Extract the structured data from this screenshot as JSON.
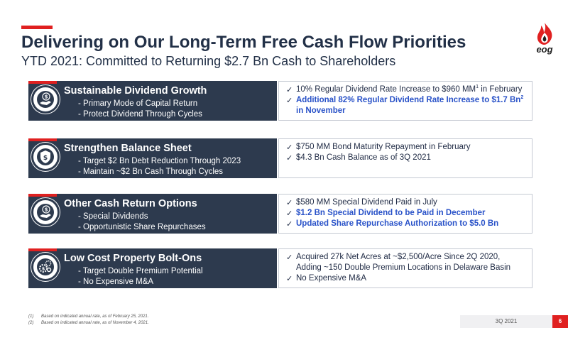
{
  "header": {
    "title": "Delivering on Our Long-Term Free Cash Flow Priorities",
    "subtitle": "YTD 2021: Committed to Returning $2.7 Bn Cash to Shareholders",
    "logo_text": "eog"
  },
  "rows": [
    {
      "icon": "money-hand-icon",
      "heading": "Sustainable Dividend Growth",
      "bullets": [
        "Primary Mode of Capital Return",
        "Protect Dividend Through Cycles"
      ],
      "checks": [
        {
          "text": "10% Regular Dividend Rate Increase to $960 MM",
          "sup": "1",
          "after": " in February",
          "highlight": false
        },
        {
          "text": "Additional 82% Regular Dividend Rate Increase to $1.7 Bn",
          "sup": "2",
          "after": " in November",
          "highlight": true
        }
      ]
    },
    {
      "icon": "shield-dollar-icon",
      "heading": "Strengthen Balance Sheet",
      "bullets": [
        "Target $2 Bn Debt Reduction Through 2023",
        "Maintain ~$2 Bn Cash Through Cycles"
      ],
      "checks": [
        {
          "text": "$750 MM Bond Maturity Repayment in February",
          "highlight": false
        },
        {
          "text": "$4.3 Bn Cash Balance as of 3Q 2021",
          "highlight": false
        }
      ]
    },
    {
      "icon": "money-hand-icon",
      "heading": "Other Cash Return Options",
      "bullets": [
        "Special Dividends",
        "Opportunistic Share Repurchases"
      ],
      "checks": [
        {
          "text": "$580 MM Special Dividend Paid in July",
          "highlight": false
        },
        {
          "text": "$1.2 Bn Special Dividend to be Paid in December",
          "highlight": true
        },
        {
          "text": "Updated Share Repurchase Authorization to $5.0 Bn",
          "highlight": true
        }
      ]
    },
    {
      "icon": "gears-dollar-icon",
      "heading": "Low Cost Property Bolt-Ons",
      "bullets": [
        "Target Double Premium Potential",
        "No Expensive M&A"
      ],
      "checks": [
        {
          "text": "Acquired 27k Net Acres at ~$2,500/Acre Since 2Q 2020, Adding ~150 Double Premium Locations in Delaware Basin",
          "highlight": false
        },
        {
          "text": "No Expensive M&A",
          "highlight": false
        }
      ]
    }
  ],
  "footnotes": [
    {
      "num": "(1)",
      "text": "Based on indicated annual rate, as of February 25, 2021."
    },
    {
      "num": "(2)",
      "text": "Based on indicated annual rate, as of November 4, 2021."
    }
  ],
  "footer": {
    "period": "3Q 2021",
    "page": "6"
  },
  "colors": {
    "accent": "#e02020",
    "navy": "#2d3a4e",
    "highlight_blue": "#2952c8"
  }
}
